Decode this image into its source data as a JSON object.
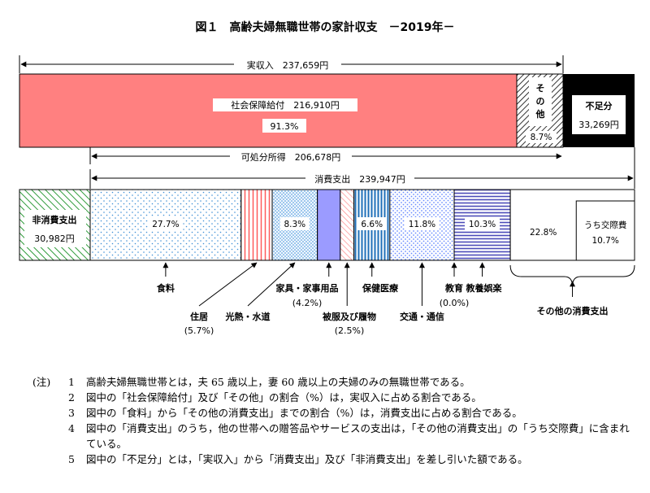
{
  "chart_data": {
    "type": "bar",
    "title": "図１　高齢夫婦無職世帯の家計収支　－2019年－",
    "income": {
      "label": "実収入　237,659円",
      "items": [
        {
          "name": "社会保障給付",
          "value_label": "社会保障給付　216,910円",
          "pct_label": "91.3%",
          "percent": 91.3,
          "color": "#ff8080"
        },
        {
          "name": "その他",
          "label_lines": [
            "そ",
            "の",
            "他"
          ],
          "pct_label": "8.7%",
          "percent": 8.7,
          "color": "#ffffff"
        }
      ],
      "deficit": {
        "name": "不足分",
        "value_label": "33,269円"
      }
    },
    "disposable_label": "可処分所得　206,678円",
    "consumption_label": "消費支出　239,947円",
    "non_consumption": {
      "name": "非消費支出",
      "value_label": "30,982円"
    },
    "consumption_items": [
      {
        "name": "食料",
        "percent": 27.7,
        "pct_label": "27.7%",
        "pattern": "dots",
        "color": "#3d8fd6"
      },
      {
        "name": "住居",
        "percent": 5.7,
        "pct_label": "(5.7%)",
        "pattern": "vlines",
        "color": "#ff5a5a"
      },
      {
        "name": "光熱・水道",
        "percent": 8.3,
        "pct_label": "8.3%",
        "pattern": "dots2",
        "color": "#3d8fd6"
      },
      {
        "name": "家具・家事用品",
        "percent": 4.2,
        "pct_label": "(4.2%)",
        "pattern": "solid",
        "color": "#9b9bff"
      },
      {
        "name": "被服及び履物",
        "percent": 2.5,
        "pct_label": "(2.5%)",
        "pattern": "diag",
        "color": "#ff9e9e"
      },
      {
        "name": "保健医療",
        "percent": 6.6,
        "pct_label": "6.6%",
        "pattern": "vlines",
        "color": "#1f6fb8"
      },
      {
        "name": "交通・通信",
        "percent": 11.8,
        "pct_label": "11.8%",
        "pattern": "dots3",
        "color": "#6a8cff"
      },
      {
        "name": "教育",
        "percent": 0.0,
        "pct_label": "(0.0%)",
        "pattern": "none",
        "color": "#ffffff"
      },
      {
        "name": "教養娯楽",
        "percent": 10.3,
        "pct_label": "10.3%",
        "pattern": "hlines",
        "color": "#4b4bb8"
      },
      {
        "name": "その他の消費支出",
        "percent": 22.8,
        "pct_label": "22.8%",
        "pattern": "none",
        "color": "#ffffff",
        "sub": {
          "name": "うち交際費",
          "pct_label": "10.7%",
          "percent": 10.7
        }
      }
    ]
  },
  "notes": {
    "head": "(注)",
    "items": [
      {
        "num": "1",
        "text": "高齢夫婦無職世帯とは，夫 65 歳以上，妻 60 歳以上の夫婦のみの無職世帯である。"
      },
      {
        "num": "2",
        "text": "図中の「社会保障給付」及び「その他」の割合（%）は，実収入に占める割合である。"
      },
      {
        "num": "3",
        "text": "図中の「食料」から「その他の消費支出」までの割合（%）は，消費支出に占める割合である。"
      },
      {
        "num": "4",
        "text": "図中の「消費支出」のうち，他の世帯への贈答品やサービスの支出は，「その他の消費支出」の「うち交際費」に含まれている。"
      },
      {
        "num": "5",
        "text": "図中の「不足分」とは，「実収入」から「消費支出」及び「非消費支出」を差し引いた額である。"
      }
    ]
  }
}
